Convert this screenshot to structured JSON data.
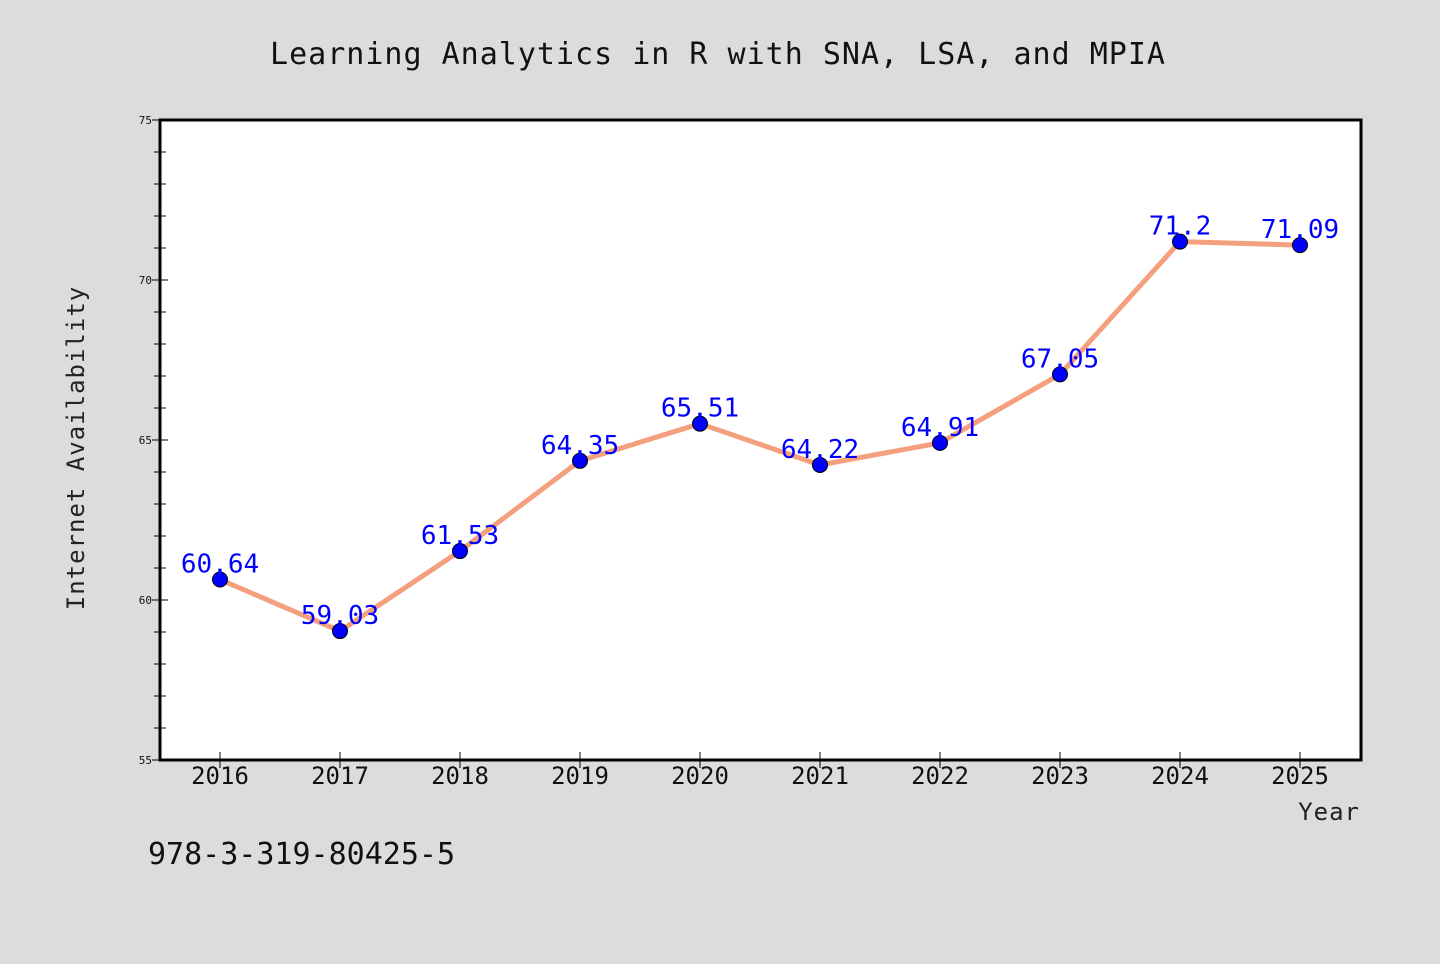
{
  "colors": {
    "background": "#dcdcdc",
    "plot_background": "#ffffff",
    "line": "#f4a07f",
    "marker": "#0000ff",
    "data_label": "#0000ff"
  },
  "footer": {
    "isbn": "978-3-319-80425-5"
  },
  "chart_data": {
    "type": "line",
    "title": "Learning Analytics in R with SNA, LSA, and MPIA",
    "xlabel": "Year",
    "ylabel": "Internet Availability",
    "categories": [
      "2016",
      "2017",
      "2018",
      "2019",
      "2020",
      "2021",
      "2022",
      "2023",
      "2024",
      "2025"
    ],
    "values": [
      60.64,
      59.03,
      61.53,
      64.35,
      65.51,
      64.22,
      64.91,
      67.05,
      71.2,
      71.09
    ],
    "data_labels": [
      "60.64",
      "59.03",
      "61.53",
      "64.35",
      "65.51",
      "64.22",
      "64.91",
      "67.05",
      "71.2",
      "71.09"
    ],
    "ylim": [
      55,
      75
    ],
    "yticks": [
      55,
      60,
      65,
      70,
      75
    ],
    "ytick_labels": [
      "55",
      "60",
      "65",
      "70",
      "75"
    ],
    "grid": false,
    "legend": "none",
    "markers": true
  }
}
